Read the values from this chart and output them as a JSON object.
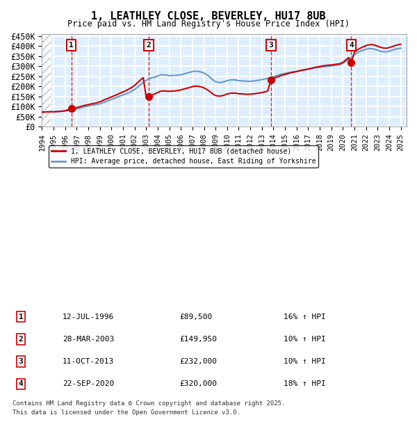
{
  "title1": "1, LEATHLEY CLOSE, BEVERLEY, HU17 8UB",
  "title2": "Price paid vs. HM Land Registry's House Price Index (HPI)",
  "ylabel_ticks": [
    "£0",
    "£50K",
    "£100K",
    "£150K",
    "£200K",
    "£250K",
    "£300K",
    "£350K",
    "£400K",
    "£450K"
  ],
  "ytick_values": [
    0,
    50000,
    100000,
    150000,
    200000,
    250000,
    300000,
    350000,
    400000,
    450000
  ],
  "ylim": [
    0,
    460000
  ],
  "xlim_start": 1994.0,
  "xlim_end": 2025.5,
  "background_color": "#ddeeff",
  "hatch_color": "#c0c8d8",
  "grid_color": "#ffffff",
  "red_color": "#cc0000",
  "blue_color": "#6699cc",
  "legend_label_red": "1, LEATHLEY CLOSE, BEVERLEY, HU17 8UB (detached house)",
  "legend_label_blue": "HPI: Average price, detached house, East Riding of Yorkshire",
  "transactions": [
    {
      "num": 1,
      "date": "12-JUL-1996",
      "price": 89500,
      "year": 1996.54,
      "pct": "16%",
      "dir": "↑"
    },
    {
      "num": 2,
      "date": "28-MAR-2003",
      "price": 149950,
      "year": 2003.23,
      "pct": "10%",
      "dir": "↑"
    },
    {
      "num": 3,
      "date": "11-OCT-2013",
      "price": 232000,
      "year": 2013.78,
      "pct": "10%",
      "dir": "↑"
    },
    {
      "num": 4,
      "date": "22-SEP-2020",
      "price": 320000,
      "year": 2020.72,
      "pct": "18%",
      "dir": "↑"
    }
  ],
  "footer1": "Contains HM Land Registry data © Crown copyright and database right 2025.",
  "footer2": "This data is licensed under the Open Government Licence v3.0.",
  "hpi_years": [
    1994.0,
    1994.25,
    1994.5,
    1994.75,
    1995.0,
    1995.25,
    1995.5,
    1995.75,
    1996.0,
    1996.25,
    1996.5,
    1996.75,
    1997.0,
    1997.25,
    1997.5,
    1997.75,
    1998.0,
    1998.25,
    1998.5,
    1998.75,
    1999.0,
    1999.25,
    1999.5,
    1999.75,
    2000.0,
    2000.25,
    2000.5,
    2000.75,
    2001.0,
    2001.25,
    2001.5,
    2001.75,
    2002.0,
    2002.25,
    2002.5,
    2002.75,
    2003.0,
    2003.25,
    2003.5,
    2003.75,
    2004.0,
    2004.25,
    2004.5,
    2004.75,
    2005.0,
    2005.25,
    2005.5,
    2005.75,
    2006.0,
    2006.25,
    2006.5,
    2006.75,
    2007.0,
    2007.25,
    2007.5,
    2007.75,
    2008.0,
    2008.25,
    2008.5,
    2008.75,
    2009.0,
    2009.25,
    2009.5,
    2009.75,
    2010.0,
    2010.25,
    2010.5,
    2010.75,
    2011.0,
    2011.25,
    2011.5,
    2011.75,
    2012.0,
    2012.25,
    2012.5,
    2012.75,
    2013.0,
    2013.25,
    2013.5,
    2013.75,
    2014.0,
    2014.25,
    2014.5,
    2014.75,
    2015.0,
    2015.25,
    2015.5,
    2015.75,
    2016.0,
    2016.25,
    2016.5,
    2016.75,
    2017.0,
    2017.25,
    2017.5,
    2017.75,
    2018.0,
    2018.25,
    2018.5,
    2018.75,
    2019.0,
    2019.25,
    2019.5,
    2019.75,
    2020.0,
    2020.25,
    2020.5,
    2020.75,
    2021.0,
    2021.25,
    2021.5,
    2021.75,
    2022.0,
    2022.25,
    2022.5,
    2022.75,
    2023.0,
    2023.25,
    2023.5,
    2023.75,
    2024.0,
    2024.25,
    2024.5,
    2024.75,
    2025.0
  ],
  "hpi_values": [
    72000,
    73000,
    74000,
    74500,
    74000,
    75000,
    76000,
    77000,
    78000,
    80000,
    82000,
    84000,
    88000,
    92000,
    96000,
    100000,
    103000,
    106000,
    108000,
    110000,
    114000,
    119000,
    124000,
    130000,
    136000,
    141000,
    147000,
    153000,
    158000,
    163000,
    169000,
    176000,
    185000,
    196000,
    208000,
    220000,
    230000,
    238000,
    243000,
    246000,
    252000,
    258000,
    258000,
    256000,
    254000,
    254000,
    255000,
    256000,
    258000,
    262000,
    266000,
    270000,
    274000,
    276000,
    275000,
    272000,
    267000,
    258000,
    247000,
    234000,
    224000,
    220000,
    220000,
    224000,
    229000,
    232000,
    233000,
    232000,
    229000,
    228000,
    227000,
    226000,
    226000,
    227000,
    229000,
    231000,
    234000,
    237000,
    240000,
    243000,
    248000,
    253000,
    258000,
    262000,
    265000,
    268000,
    271000,
    273000,
    275000,
    278000,
    281000,
    283000,
    285000,
    288000,
    291000,
    293000,
    295000,
    297000,
    299000,
    301000,
    302000,
    304000,
    306000,
    308000,
    315000,
    325000,
    335000,
    345000,
    358000,
    368000,
    375000,
    380000,
    385000,
    388000,
    388000,
    385000,
    380000,
    375000,
    372000,
    372000,
    375000,
    380000,
    385000,
    388000,
    390000
  ],
  "red_years": [
    1994.0,
    1994.25,
    1994.5,
    1994.75,
    1995.0,
    1995.25,
    1995.5,
    1995.75,
    1996.0,
    1996.25,
    1996.54,
    1996.75,
    1997.0,
    1997.25,
    1997.5,
    1997.75,
    1998.0,
    1998.25,
    1998.5,
    1998.75,
    1999.0,
    1999.25,
    1999.5,
    1999.75,
    2000.0,
    2000.25,
    2000.5,
    2000.75,
    2001.0,
    2001.25,
    2001.5,
    2001.75,
    2002.0,
    2002.25,
    2002.5,
    2002.75,
    2003.0,
    2003.23,
    2003.5,
    2003.75,
    2004.0,
    2004.25,
    2004.5,
    2004.75,
    2005.0,
    2005.25,
    2005.5,
    2005.75,
    2006.0,
    2006.25,
    2006.5,
    2006.75,
    2007.0,
    2007.25,
    2007.5,
    2007.75,
    2008.0,
    2008.25,
    2008.5,
    2008.75,
    2009.0,
    2009.25,
    2009.5,
    2009.75,
    2010.0,
    2010.25,
    2010.5,
    2010.75,
    2011.0,
    2011.25,
    2011.5,
    2011.75,
    2012.0,
    2012.25,
    2012.5,
    2012.75,
    2013.0,
    2013.25,
    2013.5,
    2013.78,
    2014.0,
    2014.25,
    2014.5,
    2014.75,
    2015.0,
    2015.25,
    2015.5,
    2015.75,
    2016.0,
    2016.25,
    2016.5,
    2016.75,
    2017.0,
    2017.25,
    2017.5,
    2017.75,
    2018.0,
    2018.25,
    2018.5,
    2018.75,
    2019.0,
    2019.25,
    2019.5,
    2019.75,
    2020.0,
    2020.25,
    2020.5,
    2020.72,
    2021.0,
    2021.25,
    2021.5,
    2021.75,
    2022.0,
    2022.25,
    2022.5,
    2022.75,
    2023.0,
    2023.25,
    2023.5,
    2023.75,
    2024.0,
    2024.25,
    2024.5,
    2024.75,
    2025.0
  ],
  "red_values": [
    72000,
    73000,
    74000,
    74500,
    74000,
    75000,
    76000,
    77000,
    80000,
    84000,
    89500,
    91000,
    95000,
    99000,
    103000,
    107000,
    110000,
    113000,
    116000,
    119000,
    124000,
    130000,
    136000,
    142000,
    148000,
    154000,
    160000,
    167000,
    173000,
    179000,
    187000,
    195000,
    205000,
    218000,
    232000,
    244000,
    149950,
    153000,
    158000,
    163000,
    170000,
    177000,
    178000,
    177000,
    176000,
    177000,
    178000,
    180000,
    183000,
    187000,
    191000,
    195000,
    199000,
    202000,
    201000,
    198000,
    193000,
    185000,
    175000,
    163000,
    155000,
    152000,
    153000,
    157000,
    163000,
    166000,
    167000,
    167000,
    164000,
    163000,
    162000,
    161000,
    162000,
    163000,
    165000,
    167000,
    170000,
    173000,
    177000,
    232000,
    239000,
    245000,
    251000,
    256000,
    260000,
    264000,
    268000,
    271000,
    274000,
    278000,
    281000,
    284000,
    287000,
    290000,
    294000,
    297000,
    299000,
    302000,
    304000,
    306000,
    307000,
    309000,
    311000,
    313000,
    320000,
    332000,
    344000,
    320000,
    370000,
    382000,
    390000,
    397000,
    403000,
    407000,
    408000,
    405000,
    400000,
    395000,
    391000,
    390000,
    393000,
    398000,
    403000,
    407000,
    410000
  ]
}
